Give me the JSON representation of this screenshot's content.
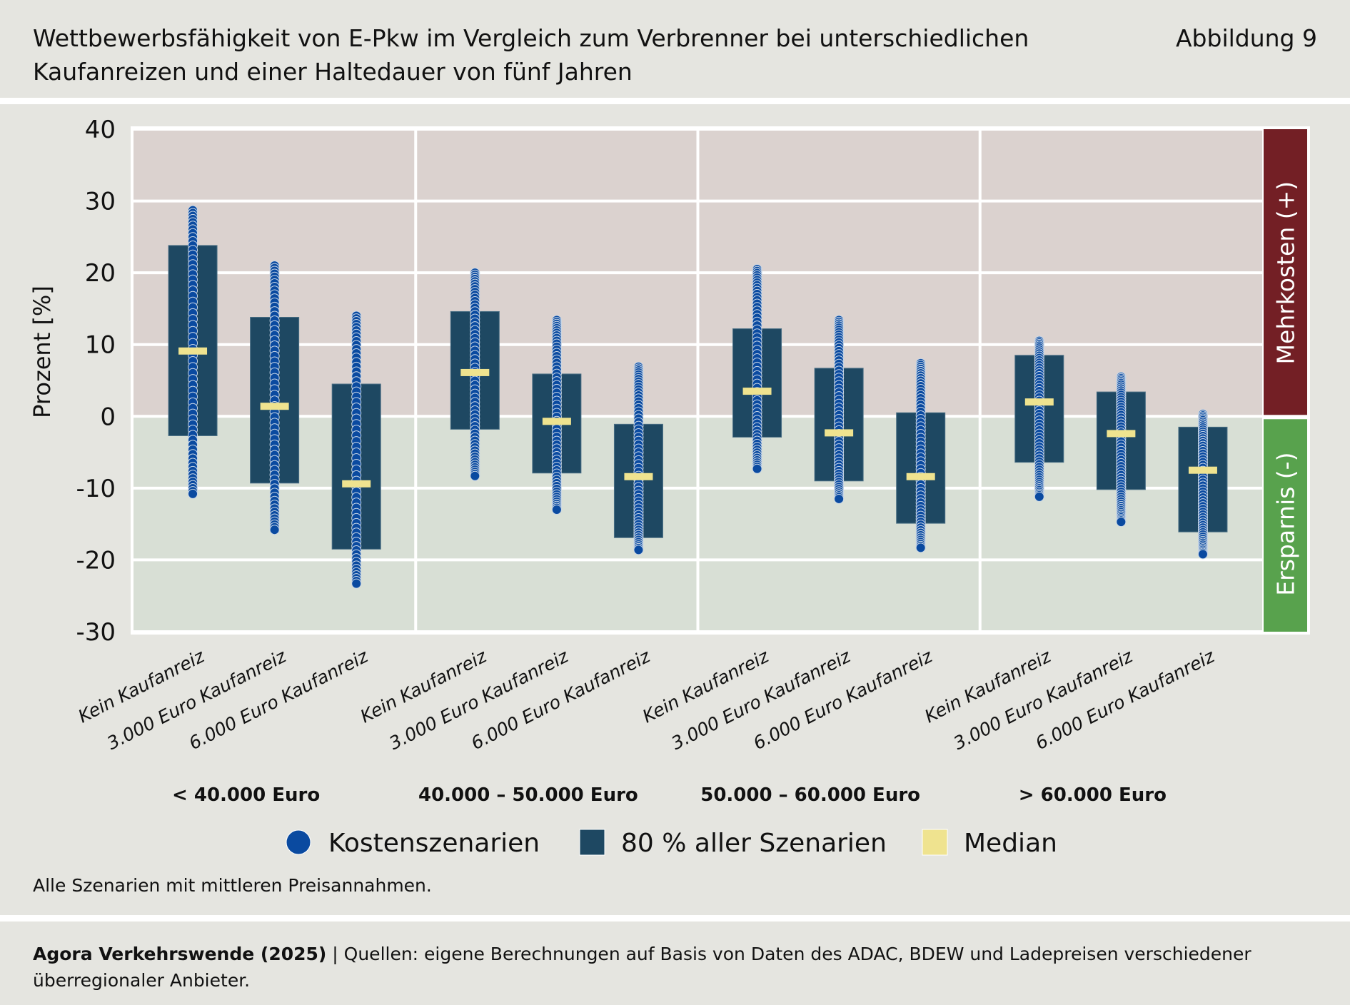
{
  "header": {
    "title_line1": "Wettbewerbsfähigkeit von E-Pkw im Vergleich zum Verbrenner bei unterschiedlichen",
    "title_line2": "Kaufanreizen und einer Haltedauer von fünf Jahren",
    "figure_label": "Abbildung 9"
  },
  "colors": {
    "background": "#e5e5e0",
    "zone_cost": "#dbd2cf",
    "zone_saving": "#d8dfd5",
    "box": "#1e4862",
    "point": "#0a4aa0",
    "median": "#efe38f",
    "label_cost": "#731f25",
    "label_saving": "#58a24d"
  },
  "chart_data": {
    "type": "box-strip",
    "title": "Wettbewerbsfähigkeit von E-Pkw im Vergleich zum Verbrenner bei unterschiedlichen Kaufanreizen und einer Haltedauer von fünf Jahren",
    "ylabel": "Prozent [%]",
    "xlabel": "",
    "ylim": [
      -30,
      40
    ],
    "yticks": [
      40,
      30,
      20,
      10,
      0,
      -10,
      -20,
      -30
    ],
    "grid": true,
    "zones": [
      {
        "label": "Mehrkosten (+)",
        "from": 0,
        "to": 40
      },
      {
        "label": "Ersparnis (-)",
        "from": -30,
        "to": 0
      }
    ],
    "groups": [
      {
        "label": "< 40.000 Euro",
        "categories": [
          {
            "label": "Kein Kaufanreiz",
            "p10": -2.7,
            "p90": 23.8,
            "median": 9.1,
            "min": -10.8,
            "max": 28.7
          },
          {
            "label": "3.000 Euro Kaufanreiz",
            "p10": -9.3,
            "p90": 13.8,
            "median": 1.4,
            "min": -15.8,
            "max": 21.0
          },
          {
            "label": "6.000 Euro Kaufanreiz",
            "p10": -18.5,
            "p90": 4.5,
            "median": -9.4,
            "min": -23.3,
            "max": 14.0
          }
        ]
      },
      {
        "label": "40.000 – 50.000 Euro",
        "categories": [
          {
            "label": "Kein Kaufanreiz",
            "p10": -1.8,
            "p90": 14.6,
            "median": 6.1,
            "min": -8.3,
            "max": 20.0
          },
          {
            "label": "3.000 Euro Kaufanreiz",
            "p10": -7.9,
            "p90": 5.9,
            "median": -0.7,
            "min": -13.0,
            "max": 13.4
          },
          {
            "label": "6.000 Euro Kaufanreiz",
            "p10": -16.9,
            "p90": -1.1,
            "median": -8.4,
            "min": -18.6,
            "max": 6.9
          }
        ]
      },
      {
        "label": "50.000 – 60.000 Euro",
        "categories": [
          {
            "label": "Kein Kaufanreiz",
            "p10": -2.9,
            "p90": 12.2,
            "median": 3.5,
            "min": -7.3,
            "max": 20.5
          },
          {
            "label": "3.000 Euro Kaufanreiz",
            "p10": -9.0,
            "p90": 6.7,
            "median": -2.3,
            "min": -11.5,
            "max": 13.4
          },
          {
            "label": "6.000 Euro Kaufanreiz",
            "p10": -14.9,
            "p90": 0.5,
            "median": -8.4,
            "min": -18.3,
            "max": 7.4
          }
        ]
      },
      {
        "label": "> 60.000 Euro",
        "categories": [
          {
            "label": "Kein Kaufanreiz",
            "p10": -6.4,
            "p90": 8.5,
            "median": 2.0,
            "min": -11.2,
            "max": 10.5
          },
          {
            "label": "3.000 Euro Kaufanreiz",
            "p10": -10.2,
            "p90": 3.4,
            "median": -2.4,
            "min": -14.7,
            "max": 5.5
          },
          {
            "label": "6.000 Euro Kaufanreiz",
            "p10": -16.1,
            "p90": -1.5,
            "median": -7.5,
            "min": -19.2,
            "max": 0.3
          }
        ]
      }
    ],
    "legend": [
      {
        "label": "Kostenszenarien",
        "type": "point"
      },
      {
        "label": "80 % aller Szenarien",
        "type": "box"
      },
      {
        "label": "Median",
        "type": "median"
      }
    ],
    "legend_position": "bottom"
  },
  "note": "Alle Szenarien mit mittleren Preisannahmen.",
  "footer": {
    "source_bold": "Agora Verkehrswende (2025)",
    "source_text": " | Quellen: eigene Berechnungen auf Basis von Daten des ADAC, BDEW und Ladepreisen verschiedener überregionaler Anbieter."
  }
}
